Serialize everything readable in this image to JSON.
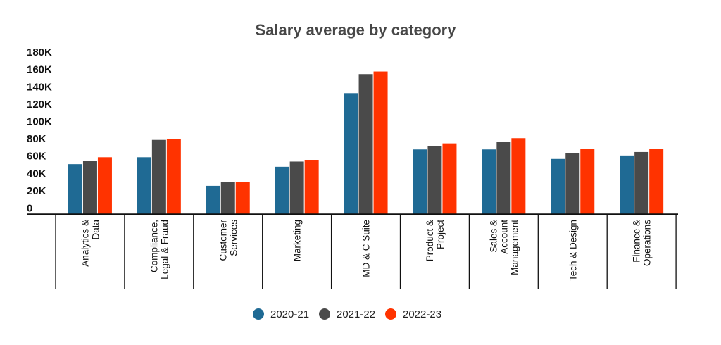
{
  "chart_data": {
    "type": "bar",
    "title": "Salary average by category",
    "xlabel": "",
    "ylabel": "",
    "ylim": [
      0,
      180000
    ],
    "yticks": [
      {
        "v": 0,
        "label": "0"
      },
      {
        "v": 20000,
        "label": "20K"
      },
      {
        "v": 40000,
        "label": "40K"
      },
      {
        "v": 60000,
        "label": "60K"
      },
      {
        "v": 80000,
        "label": "80K"
      },
      {
        "v": 100000,
        "label": "100K"
      },
      {
        "v": 120000,
        "label": "120K"
      },
      {
        "v": 140000,
        "label": "140K"
      },
      {
        "v": 160000,
        "label": "160K"
      },
      {
        "v": 180000,
        "label": "180K"
      }
    ],
    "categories": [
      [
        "Analytics &",
        "Data"
      ],
      [
        "Compliance,",
        "Legal & Fraud"
      ],
      [
        "Customer",
        "Services"
      ],
      [
        "Marketing"
      ],
      [
        "MD & C Suite"
      ],
      [
        "Product &",
        "Project"
      ],
      [
        "Sales &",
        "Account",
        "Management"
      ],
      [
        "Tech & Design"
      ],
      [
        "Finance &",
        "Operations"
      ]
    ],
    "series": [
      {
        "name": "2020-21",
        "color": "#1f6a94",
        "values": [
          58000,
          66000,
          33000,
          55000,
          140000,
          75000,
          75000,
          64000,
          68000
        ]
      },
      {
        "name": "2021-22",
        "color": "#4a4a4a",
        "values": [
          62000,
          86000,
          37000,
          61000,
          162000,
          79000,
          84000,
          71000,
          72000
        ]
      },
      {
        "name": "2022-23",
        "color": "#ff3300",
        "values": [
          66000,
          87000,
          37000,
          63000,
          165000,
          82000,
          88000,
          76000,
          76000
        ]
      }
    ],
    "legend": "bottom-center",
    "grid": false
  }
}
